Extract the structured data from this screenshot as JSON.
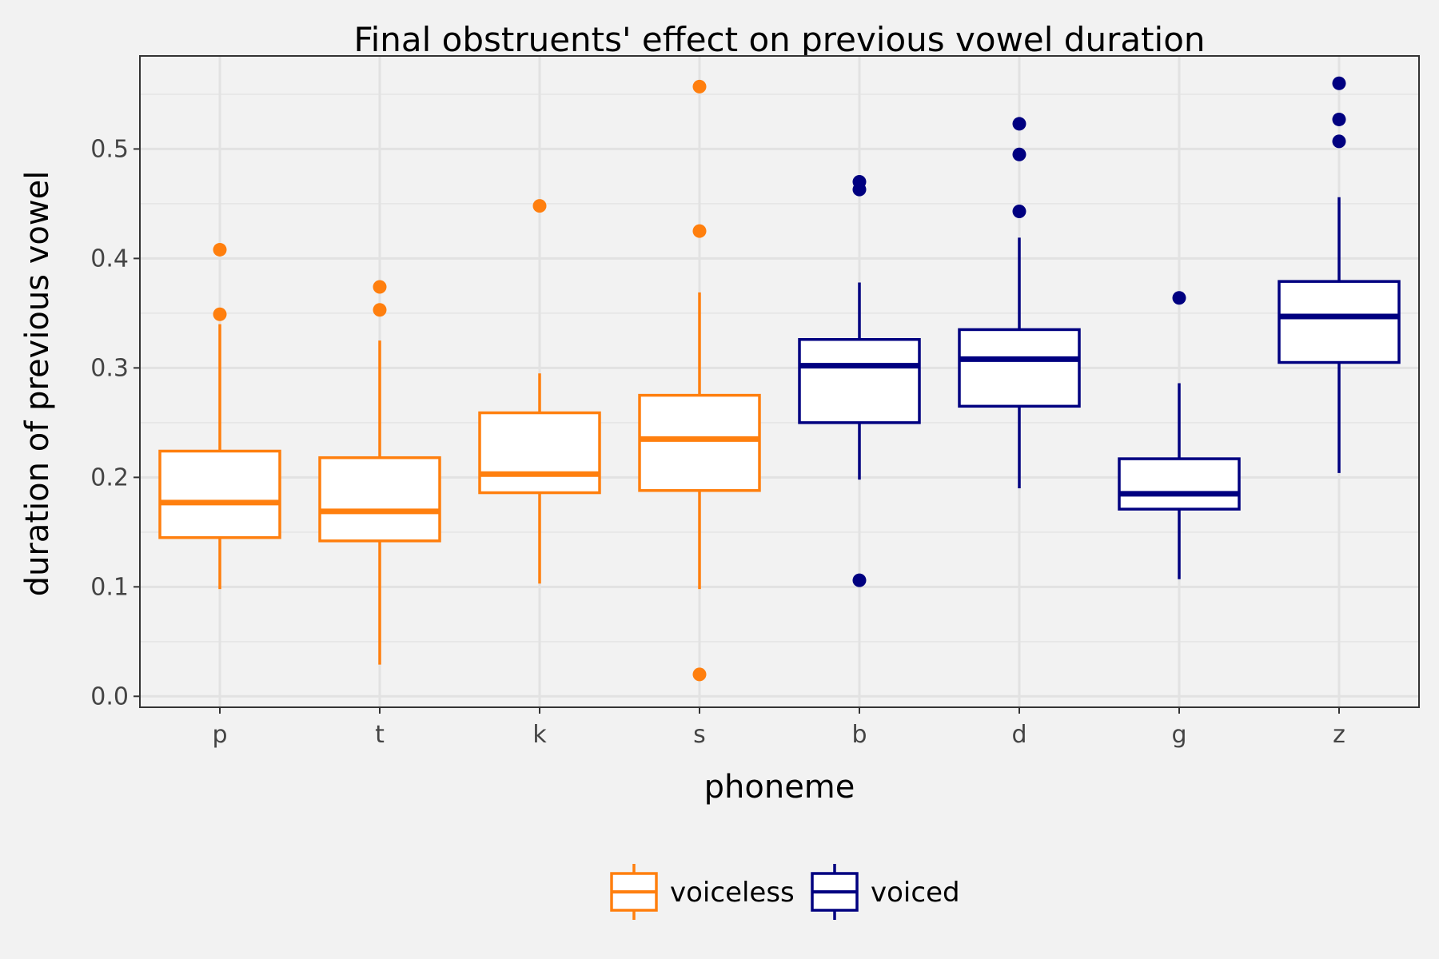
{
  "chart_data": {
    "type": "boxplot",
    "title": "Final obstruents' effect on previous vowel duration",
    "xlabel": "phoneme",
    "ylabel": "duration of previous vowel",
    "ylim": [
      -0.01,
      0.585
    ],
    "yticks": [
      0.0,
      0.1,
      0.2,
      0.3,
      0.4,
      0.5
    ],
    "ytick_labels": [
      "0.0",
      "0.1",
      "0.2",
      "0.3",
      "0.4",
      "0.5"
    ],
    "grid": true,
    "legend_position": "bottom",
    "categories": [
      "p",
      "t",
      "k",
      "s",
      "b",
      "d",
      "g",
      "z"
    ],
    "groups": [
      {
        "name": "voiceless",
        "color": "#ff7f0e"
      },
      {
        "name": "voiced",
        "color": "#000080"
      }
    ],
    "boxes": [
      {
        "category": "p",
        "group": "voiceless",
        "whisker_low": 0.098,
        "q1": 0.145,
        "median": 0.177,
        "q3": 0.224,
        "whisker_high": 0.34,
        "outliers": [
          0.408,
          0.349
        ]
      },
      {
        "category": "t",
        "group": "voiceless",
        "whisker_low": 0.029,
        "q1": 0.142,
        "median": 0.169,
        "q3": 0.218,
        "whisker_high": 0.325,
        "outliers": [
          0.374,
          0.353
        ]
      },
      {
        "category": "k",
        "group": "voiceless",
        "whisker_low": 0.103,
        "q1": 0.186,
        "median": 0.203,
        "q3": 0.259,
        "whisker_high": 0.295,
        "outliers": [
          0.448
        ]
      },
      {
        "category": "s",
        "group": "voiceless",
        "whisker_low": 0.098,
        "q1": 0.188,
        "median": 0.235,
        "q3": 0.275,
        "whisker_high": 0.369,
        "outliers": [
          0.557,
          0.425,
          0.02
        ]
      },
      {
        "category": "b",
        "group": "voiced",
        "whisker_low": 0.198,
        "q1": 0.25,
        "median": 0.302,
        "q3": 0.326,
        "whisker_high": 0.378,
        "outliers": [
          0.47,
          0.463,
          0.106
        ]
      },
      {
        "category": "d",
        "group": "voiced",
        "whisker_low": 0.19,
        "q1": 0.265,
        "median": 0.308,
        "q3": 0.335,
        "whisker_high": 0.419,
        "outliers": [
          0.523,
          0.495,
          0.443
        ]
      },
      {
        "category": "g",
        "group": "voiced",
        "whisker_low": 0.107,
        "q1": 0.171,
        "median": 0.185,
        "q3": 0.217,
        "whisker_high": 0.286,
        "outliers": [
          0.364
        ]
      },
      {
        "category": "z",
        "group": "voiced",
        "whisker_low": 0.204,
        "q1": 0.305,
        "median": 0.347,
        "q3": 0.379,
        "whisker_high": 0.456,
        "outliers": [
          0.56,
          0.527,
          0.507
        ]
      }
    ]
  }
}
